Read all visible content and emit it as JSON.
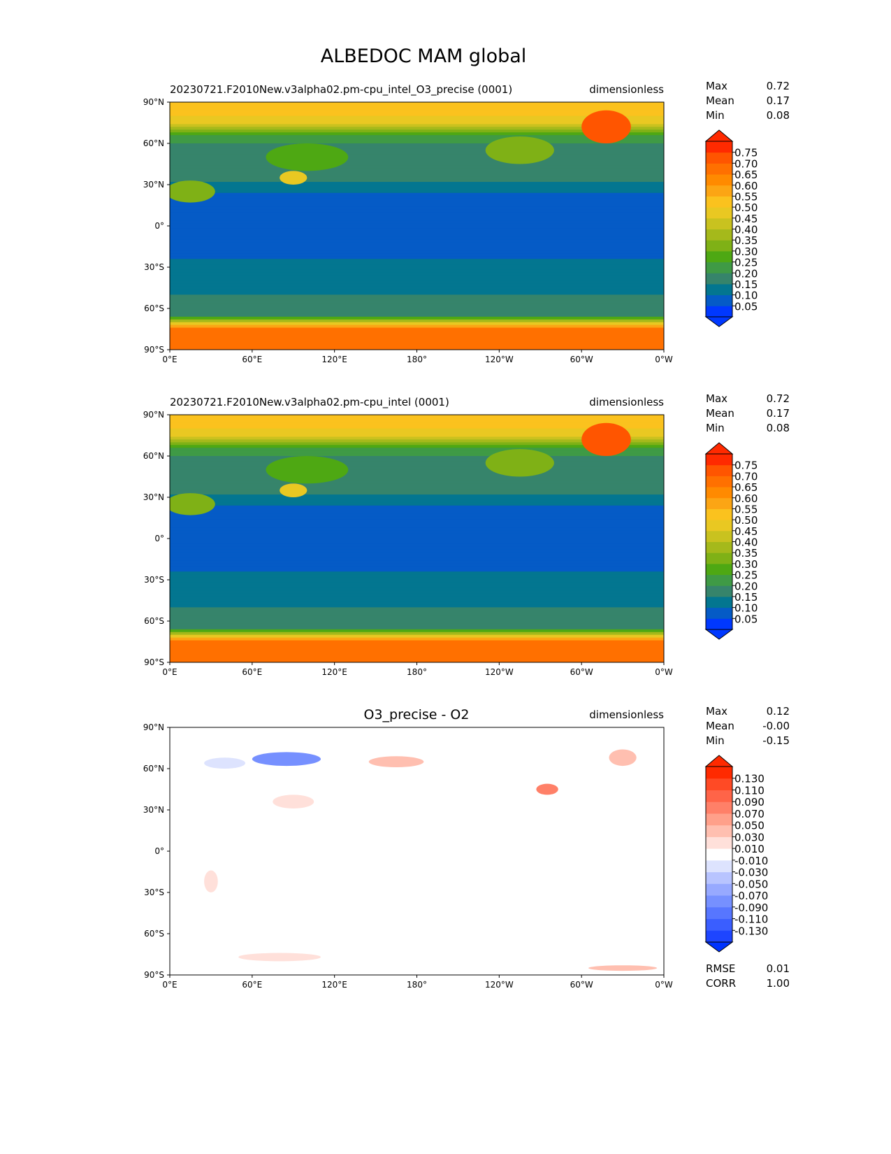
{
  "chart_data": {
    "type": "heatmap",
    "title": "ALBEDOC MAM global",
    "x_ticks": [
      "0°E",
      "60°E",
      "120°E",
      "180°",
      "120°W",
      "60°W",
      "0°W"
    ],
    "y_ticks": [
      "90°N",
      "60°N",
      "30°N",
      "0°",
      "30°S",
      "60°S",
      "90°S"
    ],
    "xlim": [
      0,
      360
    ],
    "ylim": [
      -90,
      90
    ],
    "panels": [
      {
        "title_left": "20230721.F2010New.v3alpha02.pm-cpu_intel_O3_precise (0001)",
        "title_center": "",
        "units": "dimensionless",
        "stats": [
          {
            "label": "Max",
            "value": "0.72"
          },
          {
            "label": "Mean",
            "value": "0.17"
          },
          {
            "label": "Min",
            "value": "0.08"
          }
        ],
        "colorbar": {
          "levels": [
            0,
            0.05,
            0.1,
            0.15,
            0.2,
            0.25,
            0.3,
            0.35,
            0.4,
            0.45,
            0.5,
            0.55,
            0.6,
            0.65,
            0.7,
            0.75,
            0.8
          ],
          "tick_labels": [
            "0.05",
            "0.10",
            "0.15",
            "0.20",
            "0.25",
            "0.30",
            "0.35",
            "0.40",
            "0.45",
            "0.50",
            "0.55",
            "0.60",
            "0.65",
            "0.70",
            "0.75"
          ],
          "colors": [
            "#0038ff",
            "#055bc6",
            "#037690",
            "#36846b",
            "#3f9a45",
            "#4ea813",
            "#7fb116",
            "#a5b91b",
            "#c9c21f",
            "#e9c822",
            "#fbc21e",
            "#fca514",
            "#ff8a00",
            "#ff7000",
            "#ff5500",
            "#ff2a00"
          ],
          "extend_low": "#0038ff",
          "extend_high": "#ff2a00"
        },
        "zonal_sketch": [
          [
            90,
            0.52
          ],
          [
            80,
            0.5
          ],
          [
            72,
            0.42
          ],
          [
            66,
            0.22
          ],
          [
            58,
            0.19
          ],
          [
            40,
            0.2
          ],
          [
            30,
            0.14
          ],
          [
            20,
            0.08
          ],
          [
            -20,
            0.08
          ],
          [
            -30,
            0.12
          ],
          [
            -47,
            0.13
          ],
          [
            -55,
            0.18
          ],
          [
            -66,
            0.2
          ],
          [
            -70,
            0.45
          ],
          [
            -75,
            0.68
          ],
          [
            -90,
            0.7
          ]
        ],
        "blobs": [
          [
            318,
            72,
            18,
            12,
            0.7
          ],
          [
            15,
            25,
            18,
            8,
            0.3
          ],
          [
            90,
            35,
            10,
            5,
            0.45
          ],
          [
            100,
            50,
            30,
            10,
            0.28
          ],
          [
            255,
            55,
            25,
            10,
            0.3
          ]
        ]
      },
      {
        "title_left": "20230721.F2010New.v3alpha02.pm-cpu_intel (0001)",
        "title_center": "",
        "units": "dimensionless",
        "stats": [
          {
            "label": "Max",
            "value": "0.72"
          },
          {
            "label": "Mean",
            "value": "0.17"
          },
          {
            "label": "Min",
            "value": "0.08"
          }
        ],
        "colorbar": {
          "levels": [
            0,
            0.05,
            0.1,
            0.15,
            0.2,
            0.25,
            0.3,
            0.35,
            0.4,
            0.45,
            0.5,
            0.55,
            0.6,
            0.65,
            0.7,
            0.75,
            0.8
          ],
          "tick_labels": [
            "0.05",
            "0.10",
            "0.15",
            "0.20",
            "0.25",
            "0.30",
            "0.35",
            "0.40",
            "0.45",
            "0.50",
            "0.55",
            "0.60",
            "0.65",
            "0.70",
            "0.75"
          ],
          "colors": [
            "#0038ff",
            "#055bc6",
            "#037690",
            "#36846b",
            "#3f9a45",
            "#4ea813",
            "#7fb116",
            "#a5b91b",
            "#c9c21f",
            "#e9c822",
            "#fbc21e",
            "#fca514",
            "#ff8a00",
            "#ff7000",
            "#ff5500",
            "#ff2a00"
          ],
          "extend_low": "#0038ff",
          "extend_high": "#ff2a00"
        },
        "zonal_sketch": [
          [
            90,
            0.52
          ],
          [
            80,
            0.5
          ],
          [
            72,
            0.42
          ],
          [
            66,
            0.22
          ],
          [
            58,
            0.19
          ],
          [
            40,
            0.2
          ],
          [
            30,
            0.14
          ],
          [
            20,
            0.08
          ],
          [
            -20,
            0.08
          ],
          [
            -30,
            0.12
          ],
          [
            -47,
            0.13
          ],
          [
            -55,
            0.18
          ],
          [
            -66,
            0.2
          ],
          [
            -70,
            0.45
          ],
          [
            -75,
            0.68
          ],
          [
            -90,
            0.7
          ]
        ],
        "blobs": [
          [
            318,
            72,
            18,
            12,
            0.7
          ],
          [
            15,
            25,
            18,
            8,
            0.3
          ],
          [
            90,
            35,
            10,
            5,
            0.45
          ],
          [
            100,
            50,
            30,
            10,
            0.28
          ],
          [
            255,
            55,
            25,
            10,
            0.3
          ]
        ]
      },
      {
        "title_left": "",
        "title_center": "O3_precise - O2",
        "units": "dimensionless",
        "stats": [
          {
            "label": "Max",
            "value": "0.12"
          },
          {
            "label": "Mean",
            "value": "-0.00"
          },
          {
            "label": "Min",
            "value": "-0.15"
          }
        ],
        "extra_stats": [
          {
            "label": "RMSE",
            "value": "0.01"
          },
          {
            "label": "CORR",
            "value": "1.00"
          }
        ],
        "colorbar": {
          "levels": [
            -0.15,
            -0.13,
            -0.11,
            -0.09,
            -0.07,
            -0.05,
            -0.03,
            -0.01,
            0.01,
            0.03,
            0.05,
            0.07,
            0.09,
            0.11,
            0.13,
            0.15
          ],
          "tick_labels": [
            "-0.130",
            "-0.110",
            "-0.090",
            "-0.070",
            "-0.050",
            "-0.030",
            "-0.010",
            "0.010",
            "0.030",
            "0.050",
            "0.070",
            "0.090",
            "0.110",
            "0.130"
          ],
          "colors": [
            "#1e45ff",
            "#3a5eff",
            "#5776ff",
            "#7690ff",
            "#97a9ff",
            "#b8c4ff",
            "#dde3fe",
            "#ffffff",
            "#ffe0da",
            "#ffbfb0",
            "#ffa08a",
            "#ff8068",
            "#ff6448",
            "#ff4a25",
            "#ff2a00"
          ],
          "extend_low": "#0033ff",
          "extend_high": "#ff2a00"
        },
        "zonal_sketch": [
          [
            90,
            0
          ],
          [
            -90,
            0
          ]
        ],
        "blobs": [
          [
            85,
            67,
            25,
            5,
            -0.08
          ],
          [
            40,
            64,
            15,
            4,
            -0.03
          ],
          [
            165,
            65,
            20,
            4,
            0.03
          ],
          [
            275,
            45,
            8,
            4,
            0.07
          ],
          [
            330,
            68,
            10,
            6,
            0.03
          ],
          [
            90,
            36,
            15,
            5,
            0.02
          ],
          [
            80,
            -77,
            30,
            3,
            0.02
          ],
          [
            330,
            -85,
            25,
            2,
            0.03
          ],
          [
            30,
            -22,
            5,
            8,
            0.02
          ]
        ]
      }
    ]
  }
}
